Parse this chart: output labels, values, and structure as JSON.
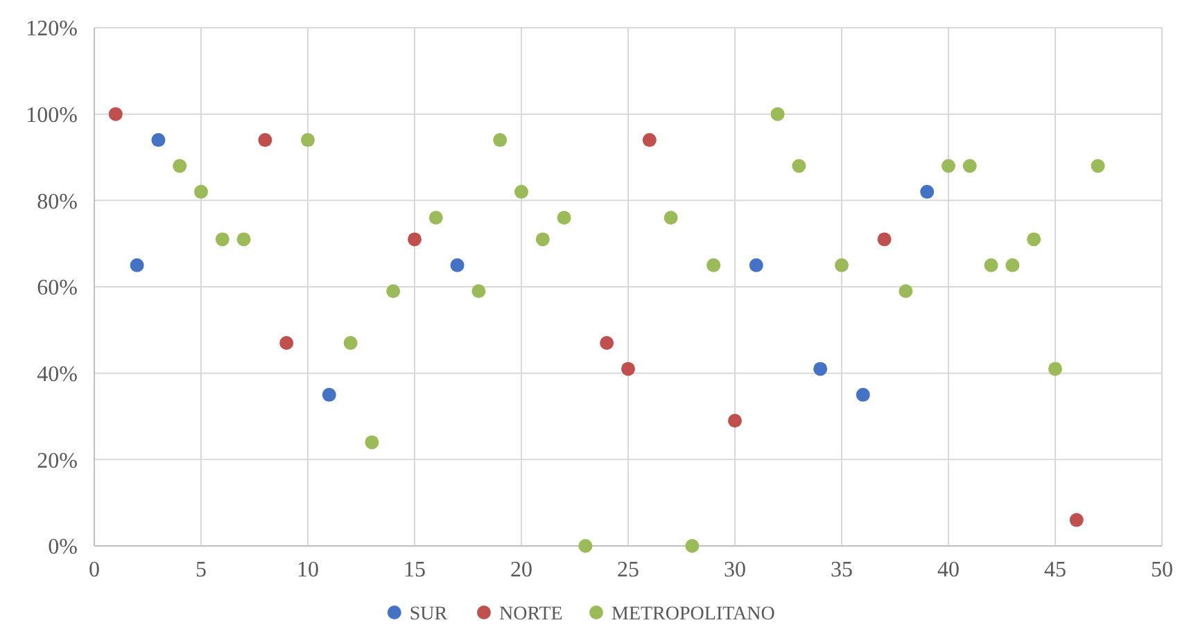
{
  "chart_data": {
    "type": "scatter",
    "xlim": [
      0,
      50
    ],
    "xticks": [
      0,
      5,
      10,
      15,
      20,
      25,
      30,
      35,
      40,
      45,
      50
    ],
    "ylim": [
      0,
      120
    ],
    "yticks": [
      {
        "value": 0,
        "label": "0%"
      },
      {
        "value": 20,
        "label": "20%"
      },
      {
        "value": 40,
        "label": "40%"
      },
      {
        "value": 60,
        "label": "60%"
      },
      {
        "value": 80,
        "label": "80%"
      },
      {
        "value": 100,
        "label": "100%"
      },
      {
        "value": 120,
        "label": "120%"
      }
    ],
    "grid": true,
    "legend": "bottom",
    "marker": "circle",
    "series": [
      {
        "name": "SUR",
        "color": "#4472c4",
        "x": [
          2,
          3,
          11,
          17,
          31,
          34,
          36,
          39
        ],
        "values": [
          65,
          94,
          35,
          65,
          65,
          41,
          35,
          82
        ]
      },
      {
        "name": "NORTE",
        "color": "#c0504d",
        "x": [
          1,
          8,
          9,
          15,
          24,
          25,
          26,
          30,
          37,
          46
        ],
        "values": [
          100,
          94,
          47,
          71,
          47,
          41,
          94,
          29,
          71,
          6
        ]
      },
      {
        "name": "METROPOLITANO",
        "color": "#9bbb59",
        "x": [
          4,
          5,
          6,
          7,
          10,
          12,
          13,
          14,
          16,
          18,
          19,
          20,
          21,
          22,
          23,
          27,
          28,
          29,
          32,
          33,
          35,
          38,
          40,
          41,
          42,
          43,
          44,
          45,
          47
        ],
        "values": [
          88,
          82,
          71,
          71,
          94,
          47,
          24,
          59,
          76,
          59,
          94,
          82,
          71,
          76,
          0,
          76,
          0,
          65,
          100,
          88,
          65,
          59,
          88,
          88,
          65,
          65,
          71,
          41,
          88
        ]
      }
    ]
  }
}
